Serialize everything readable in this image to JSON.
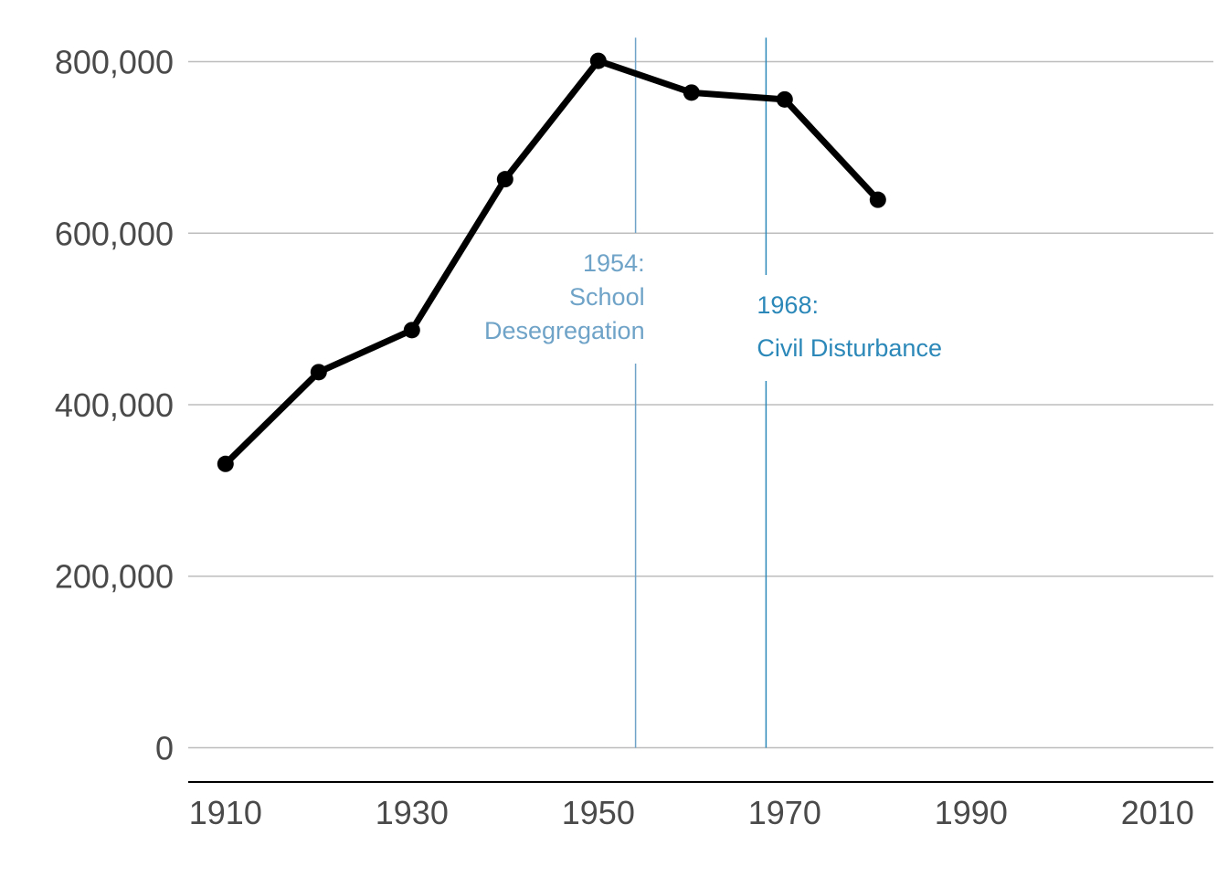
{
  "chart_data": {
    "type": "line",
    "title": "",
    "xlabel": "",
    "ylabel": "",
    "xlim": [
      1906,
      2016
    ],
    "ylim": [
      -40000,
      840000
    ],
    "x_ticks": [
      1910,
      1930,
      1950,
      1970,
      1990,
      2010
    ],
    "y_ticks": [
      0,
      200000,
      400000,
      600000,
      800000
    ],
    "y_tick_labels": [
      "0",
      "200,000",
      "400,000",
      "600,000",
      "800,000"
    ],
    "x_tick_labels": [
      "1910",
      "1930",
      "1950",
      "1970",
      "1990",
      "2010"
    ],
    "grid": "horizontal",
    "series": [
      {
        "color": "#000000",
        "points": [
          {
            "x": 1910,
            "y": 331000
          },
          {
            "x": 1920,
            "y": 438000
          },
          {
            "x": 1930,
            "y": 487000
          },
          {
            "x": 1940,
            "y": 663000
          },
          {
            "x": 1950,
            "y": 801000
          },
          {
            "x": 1960,
            "y": 764000
          },
          {
            "x": 1970,
            "y": 756000
          },
          {
            "x": 1980,
            "y": 639000
          }
        ]
      }
    ],
    "annotations": [
      {
        "year": 1954,
        "lines": [
          "1954:",
          "School",
          "Desegregation"
        ],
        "color": "#6fa3c7",
        "align": "right"
      },
      {
        "year": 1968,
        "lines": [
          "1968:",
          "Civil Disturbance"
        ],
        "color": "#2b88b8",
        "align": "left"
      }
    ]
  }
}
